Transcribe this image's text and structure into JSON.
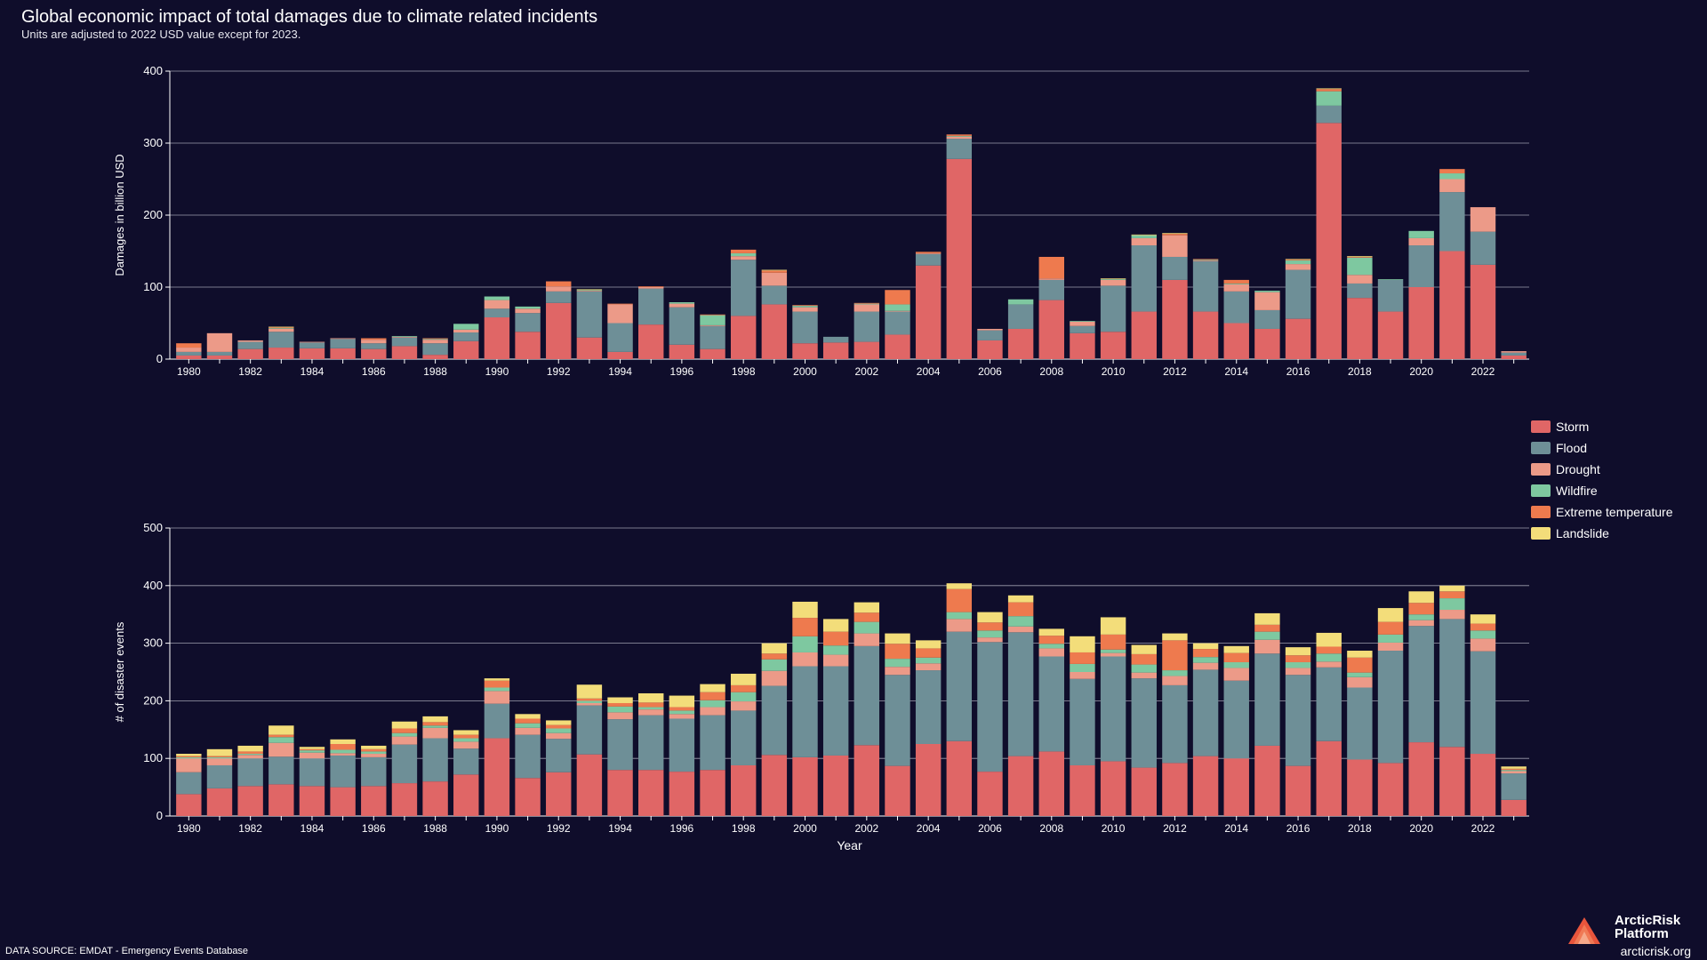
{
  "title": "Global economic impact of total damages due to climate related incidents",
  "subtitle": "Units are adjusted to 2022 USD value except for 2023.",
  "source": "DATA SOURCE: EMDAT - Emergency Events Database",
  "brand": {
    "name_line1": "ArcticRisk",
    "name_line2": "Platform",
    "url": "arcticrisk.org"
  },
  "colors": {
    "Storm": "#e06666",
    "Flood": "#6e8f97",
    "Drought": "#ec9a88",
    "Wildfire": "#7ec8a0",
    "Extreme temperature": "#ee7a4e",
    "Landslide": "#f3dd7a"
  },
  "chart_data": [
    {
      "type": "bar",
      "stacked": true,
      "ylabel": "Damages in billion USD",
      "xlabel": "",
      "ylim": [
        0,
        400
      ],
      "yticks": [
        0,
        100,
        200,
        300,
        400
      ],
      "x": [
        1980,
        1981,
        1982,
        1983,
        1984,
        1985,
        1986,
        1987,
        1988,
        1989,
        1990,
        1991,
        1992,
        1993,
        1994,
        1995,
        1996,
        1997,
        1998,
        1999,
        2000,
        2001,
        2002,
        2003,
        2004,
        2005,
        2006,
        2007,
        2008,
        2009,
        2010,
        2011,
        2012,
        2013,
        2014,
        2015,
        2016,
        2017,
        2018,
        2019,
        2020,
        2021,
        2022,
        2023
      ],
      "xticks": [
        1980,
        1982,
        1984,
        1986,
        1988,
        1990,
        1992,
        1994,
        1996,
        1998,
        2000,
        2002,
        2004,
        2006,
        2008,
        2010,
        2012,
        2014,
        2016,
        2018,
        2020,
        2022
      ],
      "grid": true,
      "series": [
        {
          "name": "Storm",
          "values": [
            5,
            5,
            14,
            16,
            15,
            15,
            14,
            18,
            6,
            25,
            58,
            38,
            78,
            30,
            10,
            48,
            20,
            14,
            60,
            76,
            22,
            23,
            24,
            34,
            130,
            278,
            26,
            42,
            82,
            36,
            38,
            66,
            110,
            66,
            50,
            42,
            56,
            328,
            85,
            66,
            100,
            150,
            131,
            5
          ]
        },
        {
          "name": "Flood",
          "values": [
            5,
            5,
            10,
            22,
            8,
            13,
            8,
            12,
            16,
            12,
            12,
            26,
            16,
            64,
            40,
            50,
            52,
            32,
            78,
            26,
            44,
            8,
            42,
            32,
            16,
            28,
            14,
            34,
            28,
            10,
            64,
            92,
            32,
            70,
            44,
            26,
            68,
            24,
            20,
            44,
            58,
            82,
            46,
            4
          ]
        },
        {
          "name": "Drought",
          "values": [
            6,
            26,
            2,
            4,
            1,
            1,
            5,
            1,
            5,
            4,
            12,
            6,
            7,
            1,
            26,
            2,
            5,
            1,
            5,
            18,
            6,
            0,
            10,
            1,
            1,
            3,
            2,
            0,
            2,
            6,
            8,
            10,
            30,
            1,
            10,
            25,
            8,
            0,
            12,
            0,
            10,
            18,
            34,
            2
          ]
        },
        {
          "name": "Wildfire",
          "values": [
            0,
            0,
            0,
            1,
            0,
            0,
            0,
            1,
            1,
            8,
            5,
            3,
            0,
            1,
            0,
            0,
            2,
            14,
            4,
            0,
            2,
            0,
            1,
            9,
            0,
            1,
            0,
            7,
            0,
            1,
            1,
            4,
            0,
            1,
            1,
            2,
            5,
            20,
            24,
            1,
            10,
            8,
            0,
            0
          ]
        },
        {
          "name": "Extreme temperature",
          "values": [
            6,
            0,
            0,
            1,
            0,
            0,
            2,
            0,
            1,
            0,
            0,
            0,
            7,
            0,
            1,
            1,
            0,
            1,
            5,
            3,
            1,
            0,
            1,
            20,
            2,
            2,
            0,
            0,
            30,
            0,
            0,
            0,
            2,
            1,
            5,
            0,
            1,
            3,
            1,
            0,
            0,
            6,
            0,
            0
          ]
        },
        {
          "name": "Landslide",
          "values": [
            0,
            0,
            0,
            1,
            0,
            0,
            0,
            0,
            0,
            0,
            0,
            0,
            0,
            1,
            0,
            0,
            0,
            0,
            0,
            1,
            0,
            0,
            0,
            0,
            0,
            0,
            0,
            0,
            0,
            0,
            1,
            1,
            1,
            0,
            0,
            0,
            1,
            1,
            1,
            0,
            0,
            0,
            0,
            0
          ]
        }
      ]
    },
    {
      "type": "bar",
      "stacked": true,
      "ylabel": "# of disaster events",
      "xlabel": "Year",
      "ylim": [
        0,
        500
      ],
      "yticks": [
        0,
        100,
        200,
        300,
        400,
        500
      ],
      "x": [
        1980,
        1981,
        1982,
        1983,
        1984,
        1985,
        1986,
        1987,
        1988,
        1989,
        1990,
        1991,
        1992,
        1993,
        1994,
        1995,
        1996,
        1997,
        1998,
        1999,
        2000,
        2001,
        2002,
        2003,
        2004,
        2005,
        2006,
        2007,
        2008,
        2009,
        2010,
        2011,
        2012,
        2013,
        2014,
        2015,
        2016,
        2017,
        2018,
        2019,
        2020,
        2021,
        2022,
        2023
      ],
      "xticks": [
        1980,
        1982,
        1984,
        1986,
        1988,
        1990,
        1992,
        1994,
        1996,
        1998,
        2000,
        2002,
        2004,
        2006,
        2008,
        2010,
        2012,
        2014,
        2016,
        2018,
        2020,
        2022
      ],
      "grid": true,
      "series": [
        {
          "name": "Storm",
          "values": [
            38,
            48,
            52,
            55,
            52,
            50,
            52,
            57,
            60,
            72,
            135,
            66,
            76,
            107,
            80,
            80,
            77,
            80,
            88,
            106,
            102,
            105,
            123,
            87,
            125,
            130,
            77,
            104,
            112,
            88,
            95,
            84,
            92,
            104,
            100,
            122,
            87,
            130,
            98,
            92,
            128,
            120,
            108,
            28
          ]
        },
        {
          "name": "Flood",
          "values": [
            38,
            40,
            48,
            48,
            48,
            55,
            50,
            67,
            75,
            45,
            60,
            75,
            58,
            85,
            88,
            95,
            92,
            95,
            95,
            120,
            158,
            155,
            172,
            158,
            128,
            190,
            225,
            215,
            165,
            150,
            182,
            155,
            135,
            150,
            135,
            160,
            158,
            128,
            125,
            195,
            202,
            222,
            178,
            46
          ]
        },
        {
          "name": "Drought",
          "values": [
            24,
            12,
            6,
            24,
            10,
            4,
            6,
            14,
            18,
            12,
            22,
            12,
            10,
            4,
            12,
            10,
            8,
            14,
            16,
            26,
            24,
            20,
            22,
            14,
            12,
            22,
            8,
            10,
            14,
            12,
            6,
            10,
            16,
            12,
            22,
            24,
            12,
            10,
            18,
            14,
            10,
            16,
            22,
            4
          ]
        },
        {
          "name": "Wildfire",
          "values": [
            2,
            2,
            2,
            10,
            4,
            6,
            4,
            6,
            4,
            6,
            6,
            8,
            8,
            4,
            10,
            4,
            6,
            12,
            16,
            20,
            28,
            16,
            20,
            14,
            10,
            12,
            12,
            18,
            8,
            14,
            6,
            14,
            10,
            10,
            10,
            14,
            10,
            14,
            8,
            14,
            10,
            20,
            14,
            2
          ]
        },
        {
          "name": "Extreme temperature",
          "values": [
            2,
            2,
            4,
            4,
            2,
            10,
            4,
            8,
            6,
            6,
            12,
            8,
            6,
            4,
            6,
            8,
            6,
            14,
            12,
            10,
            32,
            24,
            16,
            26,
            16,
            40,
            14,
            24,
            14,
            20,
            26,
            18,
            52,
            14,
            16,
            12,
            12,
            12,
            26,
            22,
            20,
            12,
            12,
            2
          ]
        },
        {
          "name": "Landslide",
          "values": [
            4,
            12,
            10,
            16,
            4,
            8,
            6,
            12,
            10,
            8,
            4,
            8,
            8,
            24,
            10,
            16,
            20,
            14,
            20,
            18,
            28,
            22,
            18,
            18,
            14,
            10,
            18,
            12,
            12,
            28,
            30,
            16,
            12,
            10,
            12,
            20,
            14,
            24,
            12,
            24,
            20,
            10,
            16,
            4
          ]
        }
      ]
    }
  ]
}
